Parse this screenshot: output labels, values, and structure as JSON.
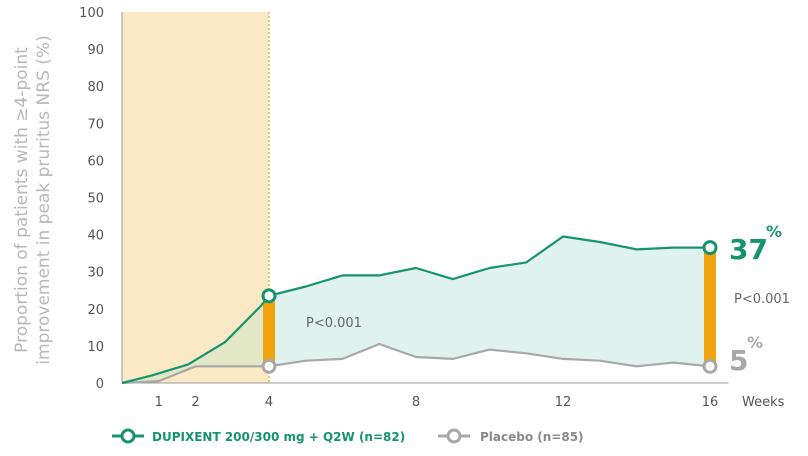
{
  "chart_data": {
    "type": "line",
    "ylabel_line1": "Proportion of patients with ≥4-point",
    "ylabel_line2": "improvement in peak pruritus NRS (%)",
    "xlabel": "Weeks",
    "ylim": [
      0,
      100
    ],
    "yticks": [
      0,
      10,
      20,
      30,
      40,
      50,
      60,
      70,
      80,
      90,
      100
    ],
    "xlim": [
      0,
      16.5
    ],
    "xticks": [
      1,
      2,
      4,
      8,
      12,
      16
    ],
    "shaded_region_x": [
      0,
      4
    ],
    "series": [
      {
        "name": "DUPIXENT 200/300 mg + Q2W (n=82)",
        "color": "#16946e",
        "x": [
          0,
          0.8,
          1.8,
          2.8,
          3.8,
          4,
          5,
          6,
          7,
          8,
          9,
          10,
          11,
          12,
          13,
          14,
          15,
          16
        ],
        "values": [
          0,
          2,
          5,
          11,
          21,
          23.5,
          26,
          29,
          29,
          31,
          28,
          31,
          32.5,
          39.5,
          38,
          36,
          36.5,
          36.5
        ]
      },
      {
        "name": "Placebo (n=85)",
        "color": "#a8a8a8",
        "x": [
          0,
          1,
          2,
          3,
          4,
          5,
          6,
          7,
          8,
          9,
          10,
          11,
          12,
          13,
          14,
          15,
          16
        ],
        "values": [
          0,
          0.5,
          4.5,
          4.5,
          4.5,
          6,
          6.5,
          10.5,
          7,
          6.5,
          9,
          8,
          6.5,
          6,
          4.5,
          5.5,
          4.5
        ]
      }
    ],
    "annotations": {
      "week4_pvalue": "P<0.001",
      "week16_pvalue": "P<0.001",
      "dupixent_end_value": "37",
      "placebo_end_value": "5",
      "percent_sign": "%"
    }
  }
}
